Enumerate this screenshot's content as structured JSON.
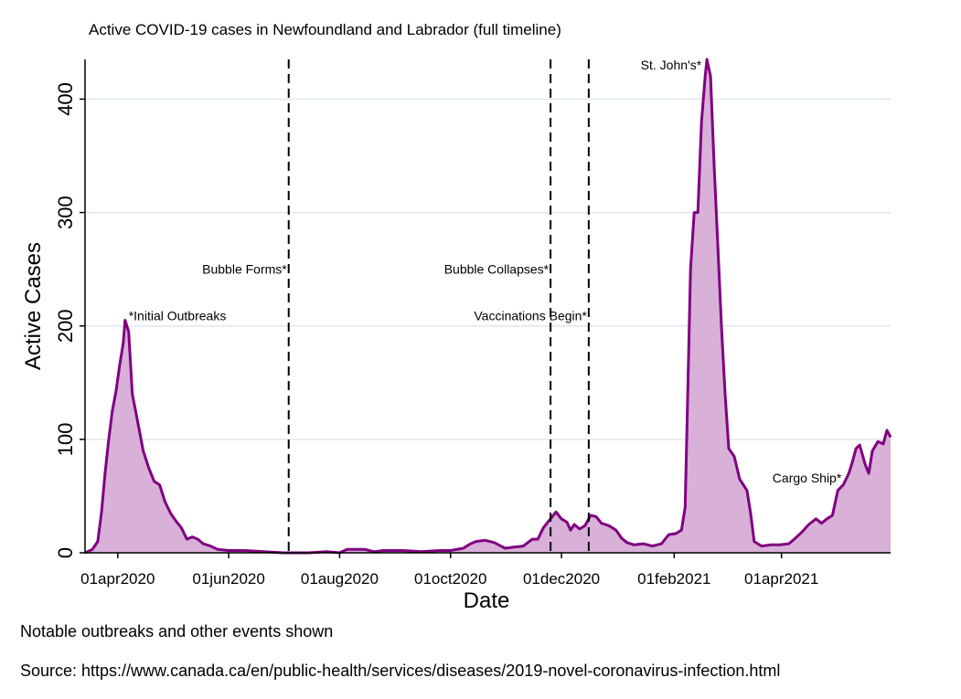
{
  "chart_data": {
    "type": "area",
    "title": "Active COVID-19 cases in Newfoundland and Labrador (full timeline)",
    "xlabel": "Date",
    "ylabel": "Active Cases",
    "xlim": [
      "2020-03-14",
      "2021-05-31"
    ],
    "ylim": [
      0,
      435
    ],
    "yticks": [
      0,
      100,
      200,
      300,
      400
    ],
    "xticks": [
      {
        "date": "2020-04-01",
        "label": "01apr2020"
      },
      {
        "date": "2020-06-01",
        "label": "01jun2020"
      },
      {
        "date": "2020-08-01",
        "label": "01aug2020"
      },
      {
        "date": "2020-10-01",
        "label": "01oct2020"
      },
      {
        "date": "2020-12-01",
        "label": "01dec2020"
      },
      {
        "date": "2021-02-01",
        "label": "01feb2021"
      },
      {
        "date": "2021-04-01",
        "label": "01apr2021"
      }
    ],
    "grid": true,
    "colors": {
      "line": "#800080",
      "fill": "#d8b0d8",
      "grid": "#dde8ee"
    },
    "series": [
      {
        "points": [
          [
            "2020-03-14",
            0
          ],
          [
            "2020-03-18",
            3
          ],
          [
            "2020-03-21",
            10
          ],
          [
            "2020-03-23",
            35
          ],
          [
            "2020-03-25",
            70
          ],
          [
            "2020-03-27",
            100
          ],
          [
            "2020-03-29",
            125
          ],
          [
            "2020-03-31",
            142
          ],
          [
            "2020-04-02",
            165
          ],
          [
            "2020-04-04",
            185
          ],
          [
            "2020-04-05",
            205
          ],
          [
            "2020-04-07",
            195
          ],
          [
            "2020-04-09",
            140
          ],
          [
            "2020-04-12",
            115
          ],
          [
            "2020-04-15",
            90
          ],
          [
            "2020-04-18",
            75
          ],
          [
            "2020-04-21",
            63
          ],
          [
            "2020-04-24",
            60
          ],
          [
            "2020-04-27",
            45
          ],
          [
            "2020-04-30",
            35
          ],
          [
            "2020-05-03",
            28
          ],
          [
            "2020-05-06",
            22
          ],
          [
            "2020-05-09",
            12
          ],
          [
            "2020-05-12",
            14
          ],
          [
            "2020-05-15",
            12
          ],
          [
            "2020-05-18",
            8
          ],
          [
            "2020-05-22",
            6
          ],
          [
            "2020-05-26",
            3
          ],
          [
            "2020-06-01",
            2
          ],
          [
            "2020-06-10",
            2
          ],
          [
            "2020-06-20",
            1
          ],
          [
            "2020-07-01",
            0
          ],
          [
            "2020-07-15",
            0
          ],
          [
            "2020-07-25",
            1
          ],
          [
            "2020-08-01",
            0
          ],
          [
            "2020-08-05",
            3
          ],
          [
            "2020-08-15",
            3
          ],
          [
            "2020-08-20",
            1
          ],
          [
            "2020-08-25",
            2
          ],
          [
            "2020-09-05",
            2
          ],
          [
            "2020-09-15",
            1
          ],
          [
            "2020-09-25",
            2
          ],
          [
            "2020-10-01",
            2
          ],
          [
            "2020-10-08",
            4
          ],
          [
            "2020-10-12",
            8
          ],
          [
            "2020-10-15",
            10
          ],
          [
            "2020-10-20",
            11
          ],
          [
            "2020-10-25",
            9
          ],
          [
            "2020-10-31",
            4
          ],
          [
            "2020-11-05",
            5
          ],
          [
            "2020-11-10",
            6
          ],
          [
            "2020-11-15",
            12
          ],
          [
            "2020-11-18",
            12
          ],
          [
            "2020-11-21",
            22
          ],
          [
            "2020-11-24",
            28
          ],
          [
            "2020-11-28",
            36
          ],
          [
            "2020-12-01",
            30
          ],
          [
            "2020-12-04",
            27
          ],
          [
            "2020-12-06",
            20
          ],
          [
            "2020-12-08",
            25
          ],
          [
            "2020-12-11",
            21
          ],
          [
            "2020-12-14",
            24
          ],
          [
            "2020-12-17",
            33
          ],
          [
            "2020-12-20",
            32
          ],
          [
            "2020-12-23",
            26
          ],
          [
            "2020-12-27",
            24
          ],
          [
            "2020-12-31",
            20
          ],
          [
            "2021-01-03",
            13
          ],
          [
            "2021-01-06",
            9
          ],
          [
            "2021-01-10",
            7
          ],
          [
            "2021-01-15",
            8
          ],
          [
            "2021-01-20",
            6
          ],
          [
            "2021-01-25",
            8
          ],
          [
            "2021-01-29",
            16
          ],
          [
            "2021-02-02",
            17
          ],
          [
            "2021-02-05",
            20
          ],
          [
            "2021-02-07",
            40
          ],
          [
            "2021-02-08",
            110
          ],
          [
            "2021-02-10",
            250
          ],
          [
            "2021-02-12",
            300
          ],
          [
            "2021-02-14",
            300
          ],
          [
            "2021-02-16",
            380
          ],
          [
            "2021-02-18",
            420
          ],
          [
            "2021-02-19",
            435
          ],
          [
            "2021-02-21",
            420
          ],
          [
            "2021-02-23",
            340
          ],
          [
            "2021-02-25",
            270
          ],
          [
            "2021-02-27",
            200
          ],
          [
            "2021-03-01",
            140
          ],
          [
            "2021-03-03",
            92
          ],
          [
            "2021-03-06",
            85
          ],
          [
            "2021-03-09",
            65
          ],
          [
            "2021-03-13",
            55
          ],
          [
            "2021-03-15",
            35
          ],
          [
            "2021-03-17",
            10
          ],
          [
            "2021-03-21",
            6
          ],
          [
            "2021-03-26",
            7
          ],
          [
            "2021-03-31",
            7
          ],
          [
            "2021-04-05",
            8
          ],
          [
            "2021-04-08",
            12
          ],
          [
            "2021-04-12",
            18
          ],
          [
            "2021-04-16",
            25
          ],
          [
            "2021-04-20",
            30
          ],
          [
            "2021-04-23",
            26
          ],
          [
            "2021-04-26",
            30
          ],
          [
            "2021-04-29",
            33
          ],
          [
            "2021-05-02",
            55
          ],
          [
            "2021-05-05",
            60
          ],
          [
            "2021-05-08",
            70
          ],
          [
            "2021-05-10",
            80
          ],
          [
            "2021-05-12",
            92
          ],
          [
            "2021-05-14",
            95
          ],
          [
            "2021-05-17",
            78
          ],
          [
            "2021-05-19",
            70
          ],
          [
            "2021-05-21",
            90
          ],
          [
            "2021-05-24",
            98
          ],
          [
            "2021-05-27",
            96
          ],
          [
            "2021-05-29",
            108
          ],
          [
            "2021-05-31",
            102
          ]
        ]
      }
    ],
    "vlines": [
      {
        "date": "2020-07-04",
        "label": "Bubble Forms*",
        "label_y": 250
      },
      {
        "date": "2020-11-25",
        "label": "Bubble Collapses*",
        "label_y": 250
      },
      {
        "date": "2020-12-16",
        "label": "Vaccinations Begin*",
        "label_y": 209
      }
    ],
    "annotations": [
      {
        "date": "2020-04-07",
        "value": 209,
        "text": "*Initial Outbreaks",
        "anchor": "start"
      },
      {
        "date": "2021-02-16",
        "value": 430,
        "text": "St. John's*",
        "anchor": "end"
      },
      {
        "date": "2021-05-04",
        "value": 66,
        "text": "Cargo Ship*",
        "anchor": "end"
      }
    ]
  },
  "notes": {
    "subnote": "Notable outbreaks and other events shown",
    "source": "Source: https://www.canada.ca/en/public-health/services/diseases/2019-novel-coronavirus-infection.html"
  }
}
